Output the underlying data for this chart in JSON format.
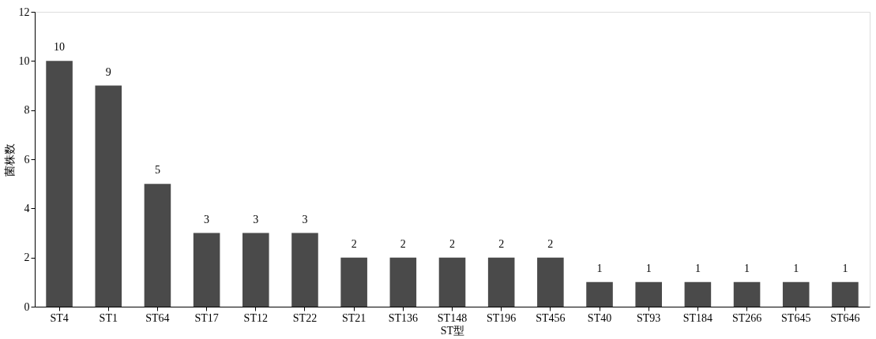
{
  "chart_data": {
    "type": "bar",
    "xlabel": "ST型",
    "ylabel": "菌株数",
    "categories": [
      "ST4",
      "ST1",
      "ST64",
      "ST17",
      "ST12",
      "ST22",
      "ST21",
      "ST136",
      "ST148",
      "ST196",
      "ST456",
      "ST40",
      "ST93",
      "ST184",
      "ST266",
      "ST645",
      "ST646"
    ],
    "values": [
      10,
      9,
      5,
      3,
      3,
      3,
      2,
      2,
      2,
      2,
      2,
      1,
      1,
      1,
      1,
      1,
      1
    ],
    "color": "#4a4a4a",
    "ylim": [
      0,
      12
    ],
    "yticks": [
      0,
      2,
      4,
      6,
      8,
      10,
      12
    ],
    "grid": false,
    "data_labels": true
  }
}
